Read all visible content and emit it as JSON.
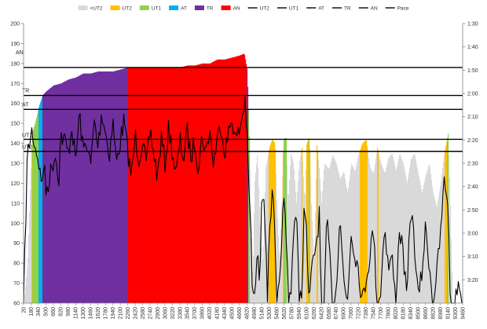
{
  "chart_data": {
    "type": "area",
    "legend_position": "top",
    "legend": [
      {
        "label": "<UT2",
        "kind": "area",
        "color": "#d9d9d9"
      },
      {
        "label": "UT2",
        "kind": "area",
        "color": "#ffc000"
      },
      {
        "label": "UT1",
        "kind": "area",
        "color": "#92d050"
      },
      {
        "label": "AT",
        "kind": "area",
        "color": "#00b0f0"
      },
      {
        "label": "TR",
        "kind": "area",
        "color": "#7030a0"
      },
      {
        "label": "AN",
        "kind": "area",
        "color": "#ff0000"
      },
      {
        "label": "UT2",
        "kind": "line",
        "color": "#000000"
      },
      {
        "label": "UT1",
        "kind": "line",
        "color": "#000000"
      },
      {
        "label": "AT",
        "kind": "line",
        "color": "#000000"
      },
      {
        "label": "TR",
        "kind": "line",
        "color": "#000000"
      },
      {
        "label": "AN",
        "kind": "line",
        "color": "#000000"
      },
      {
        "label": "Pace",
        "kind": "line",
        "color": "#000000"
      }
    ],
    "y_left": {
      "min": 60,
      "max": 200,
      "step": 10,
      "ticks": [
        "60",
        "70",
        "80",
        "90",
        "100",
        "110",
        "120",
        "130",
        "140",
        "150",
        "160",
        "170",
        "180",
        "190",
        "200"
      ]
    },
    "y_right": {
      "min_seconds": 90,
      "max_seconds": 210,
      "step_seconds": 10,
      "ticks": [
        "1:30",
        "1:40",
        "1:50",
        "2:00",
        "2:10",
        "2:20",
        "2:30",
        "2:40",
        "2:50",
        "3:00",
        "3:10",
        "3:20"
      ]
    },
    "x": {
      "min": 20,
      "max": 9460,
      "ticks": [
        "20",
        "180",
        "340",
        "500",
        "660",
        "820",
        "980",
        "1140",
        "1300",
        "1460",
        "1620",
        "1780",
        "1940",
        "2100",
        "2260",
        "2420",
        "2580",
        "2740",
        "2900",
        "3060",
        "3220",
        "3380",
        "3540",
        "3700",
        "3860",
        "4020",
        "4180",
        "4340",
        "4500",
        "4660",
        "4820",
        "4980",
        "5140",
        "5300",
        "5460",
        "5620",
        "5780",
        "5940",
        "6100",
        "6260",
        "6420",
        "6580",
        "6740",
        "6900",
        "7060",
        "7220",
        "7380",
        "7540",
        "7700",
        "7860",
        "8020",
        "8180",
        "8340",
        "8500",
        "8660",
        "8820",
        "8980",
        "9140",
        "9300",
        "9460"
      ]
    },
    "zone_lines": [
      {
        "name": "AN",
        "value": 178
      },
      {
        "name": "TR",
        "value": 164
      },
      {
        "name": "AT",
        "value": 157
      },
      {
        "name": "UT1",
        "value": 142
      },
      {
        "name": "UT2",
        "value": 136
      }
    ],
    "heart_rate_profile": [
      [
        20,
        60
      ],
      [
        100,
        80
      ],
      [
        160,
        120
      ],
      [
        200,
        145
      ],
      [
        260,
        150
      ],
      [
        340,
        158
      ],
      [
        420,
        164
      ],
      [
        500,
        166
      ],
      [
        660,
        169
      ],
      [
        820,
        170
      ],
      [
        980,
        172
      ],
      [
        1140,
        173
      ],
      [
        1300,
        175
      ],
      [
        1460,
        175
      ],
      [
        1620,
        176
      ],
      [
        1780,
        176
      ],
      [
        1940,
        176
      ],
      [
        2100,
        177
      ],
      [
        2260,
        178
      ],
      [
        2420,
        178
      ],
      [
        2580,
        178
      ],
      [
        2740,
        178
      ],
      [
        2900,
        178
      ],
      [
        3060,
        178
      ],
      [
        3220,
        178
      ],
      [
        3380,
        178
      ],
      [
        3540,
        179
      ],
      [
        3700,
        179
      ],
      [
        3860,
        180
      ],
      [
        4020,
        180
      ],
      [
        4180,
        182
      ],
      [
        4340,
        182
      ],
      [
        4500,
        183
      ],
      [
        4660,
        184
      ],
      [
        4760,
        185
      ],
      [
        4820,
        177
      ],
      [
        4860,
        150
      ],
      [
        4900,
        110
      ],
      [
        4940,
        70
      ],
      [
        4980,
        120
      ],
      [
        5040,
        135
      ],
      [
        5100,
        100
      ],
      [
        5160,
        80
      ],
      [
        5220,
        128
      ],
      [
        5300,
        138
      ],
      [
        5360,
        142
      ],
      [
        5420,
        140
      ],
      [
        5460,
        110
      ],
      [
        5520,
        80
      ],
      [
        5600,
        142
      ],
      [
        5660,
        143
      ],
      [
        5700,
        110
      ],
      [
        5760,
        135
      ],
      [
        5820,
        130
      ],
      [
        5880,
        110
      ],
      [
        5940,
        130
      ],
      [
        6000,
        138
      ],
      [
        6060,
        110
      ],
      [
        6100,
        140
      ],
      [
        6160,
        143
      ],
      [
        6200,
        110
      ],
      [
        6260,
        80
      ],
      [
        6320,
        140
      ],
      [
        6380,
        125
      ],
      [
        6420,
        110
      ],
      [
        6480,
        130
      ],
      [
        6580,
        127
      ],
      [
        6660,
        134
      ],
      [
        6740,
        130
      ],
      [
        6820,
        122
      ],
      [
        6900,
        126
      ],
      [
        6980,
        115
      ],
      [
        7060,
        130
      ],
      [
        7140,
        126
      ],
      [
        7220,
        135
      ],
      [
        7300,
        140
      ],
      [
        7380,
        142
      ],
      [
        7460,
        128
      ],
      [
        7540,
        125
      ],
      [
        7620,
        138
      ],
      [
        7700,
        130
      ],
      [
        7780,
        125
      ],
      [
        7860,
        133
      ],
      [
        7940,
        135
      ],
      [
        8020,
        126
      ],
      [
        8100,
        135
      ],
      [
        8180,
        130
      ],
      [
        8260,
        120
      ],
      [
        8340,
        132
      ],
      [
        8420,
        135
      ],
      [
        8500,
        125
      ],
      [
        8580,
        115
      ],
      [
        8660,
        124
      ],
      [
        8740,
        130
      ],
      [
        8820,
        115
      ],
      [
        8900,
        108
      ],
      [
        8980,
        120
      ],
      [
        9060,
        135
      ],
      [
        9140,
        145
      ],
      [
        9180,
        118
      ],
      [
        9240,
        60
      ],
      [
        9300,
        60
      ],
      [
        9380,
        60
      ],
      [
        9460,
        60
      ]
    ],
    "pace_profile_seconds": [
      [
        20,
        210
      ],
      [
        60,
        180
      ],
      [
        100,
        147
      ],
      [
        140,
        142
      ],
      [
        200,
        136
      ],
      [
        260,
        142
      ],
      [
        340,
        148
      ],
      [
        400,
        159
      ],
      [
        460,
        150
      ],
      [
        500,
        162
      ],
      [
        560,
        158
      ],
      [
        620,
        152
      ],
      [
        700,
        146
      ],
      [
        780,
        156
      ],
      [
        820,
        138
      ],
      [
        900,
        140
      ],
      [
        980,
        146
      ],
      [
        1060,
        134
      ],
      [
        1140,
        150
      ],
      [
        1220,
        128
      ],
      [
        1300,
        145
      ],
      [
        1380,
        140
      ],
      [
        1460,
        152
      ],
      [
        1540,
        132
      ],
      [
        1620,
        143
      ],
      [
        1700,
        128
      ],
      [
        1780,
        136
      ],
      [
        1860,
        147
      ],
      [
        1940,
        132
      ],
      [
        2020,
        150
      ],
      [
        2100,
        140
      ],
      [
        2180,
        132
      ],
      [
        2260,
        145
      ],
      [
        2340,
        156
      ],
      [
        2420,
        138
      ],
      [
        2500,
        148
      ],
      [
        2580,
        140
      ],
      [
        2660,
        152
      ],
      [
        2740,
        136
      ],
      [
        2820,
        146
      ],
      [
        2900,
        156
      ],
      [
        2980,
        139
      ],
      [
        3060,
        150
      ],
      [
        3140,
        135
      ],
      [
        3220,
        145
      ],
      [
        3300,
        156
      ],
      [
        3380,
        140
      ],
      [
        3460,
        148
      ],
      [
        3540,
        136
      ],
      [
        3620,
        148
      ],
      [
        3700,
        140
      ],
      [
        3780,
        152
      ],
      [
        3860,
        138
      ],
      [
        3940,
        146
      ],
      [
        4020,
        135
      ],
      [
        4100,
        150
      ],
      [
        4180,
        140
      ],
      [
        4260,
        132
      ],
      [
        4340,
        145
      ],
      [
        4420,
        138
      ],
      [
        4500,
        130
      ],
      [
        4580,
        140
      ],
      [
        4660,
        136
      ],
      [
        4740,
        128
      ],
      [
        4780,
        122
      ],
      [
        4820,
        135
      ],
      [
        4860,
        160
      ],
      [
        4900,
        175
      ],
      [
        4940,
        205
      ],
      [
        4980,
        210
      ],
      [
        5040,
        190
      ],
      [
        5100,
        200
      ],
      [
        5140,
        160
      ],
      [
        5200,
        165
      ],
      [
        5260,
        210
      ],
      [
        5300,
        178
      ],
      [
        5360,
        165
      ],
      [
        5400,
        170
      ],
      [
        5460,
        210
      ],
      [
        5520,
        205
      ],
      [
        5580,
        175
      ],
      [
        5620,
        168
      ],
      [
        5660,
        178
      ],
      [
        5720,
        210
      ],
      [
        5780,
        200
      ],
      [
        5840,
        172
      ],
      [
        5900,
        176
      ],
      [
        5940,
        210
      ],
      [
        6000,
        205
      ],
      [
        6060,
        165
      ],
      [
        6100,
        176
      ],
      [
        6140,
        210
      ],
      [
        6200,
        200
      ],
      [
        6260,
        190
      ],
      [
        6320,
        183
      ],
      [
        6380,
        172
      ],
      [
        6420,
        210
      ],
      [
        6480,
        210
      ],
      [
        6540,
        176
      ],
      [
        6580,
        183
      ],
      [
        6660,
        210
      ],
      [
        6740,
        205
      ],
      [
        6820,
        170
      ],
      [
        6900,
        200
      ],
      [
        6980,
        210
      ],
      [
        7060,
        180
      ],
      [
        7140,
        188
      ],
      [
        7220,
        195
      ],
      [
        7300,
        210
      ],
      [
        7380,
        200
      ],
      [
        7460,
        190
      ],
      [
        7540,
        178
      ],
      [
        7620,
        210
      ],
      [
        7700,
        205
      ],
      [
        7780,
        175
      ],
      [
        7860,
        195
      ],
      [
        7940,
        190
      ],
      [
        8020,
        210
      ],
      [
        8100,
        178
      ],
      [
        8180,
        188
      ],
      [
        8260,
        210
      ],
      [
        8340,
        168
      ],
      [
        8420,
        183
      ],
      [
        8500,
        208
      ],
      [
        8580,
        198
      ],
      [
        8660,
        178
      ],
      [
        8740,
        192
      ],
      [
        8820,
        210
      ],
      [
        8900,
        198
      ],
      [
        8980,
        182
      ],
      [
        9060,
        158
      ],
      [
        9140,
        165
      ],
      [
        9200,
        210
      ],
      [
        9300,
        210
      ],
      [
        9380,
        200
      ],
      [
        9460,
        210
      ]
    ],
    "zone_colors": {
      "below_UT2": "#d9d9d9",
      "UT2": "#ffc000",
      "UT1": "#92d050",
      "AT": "#00b0f0",
      "TR": "#7030a0",
      "AN": "#ff0000"
    },
    "grid": false
  }
}
